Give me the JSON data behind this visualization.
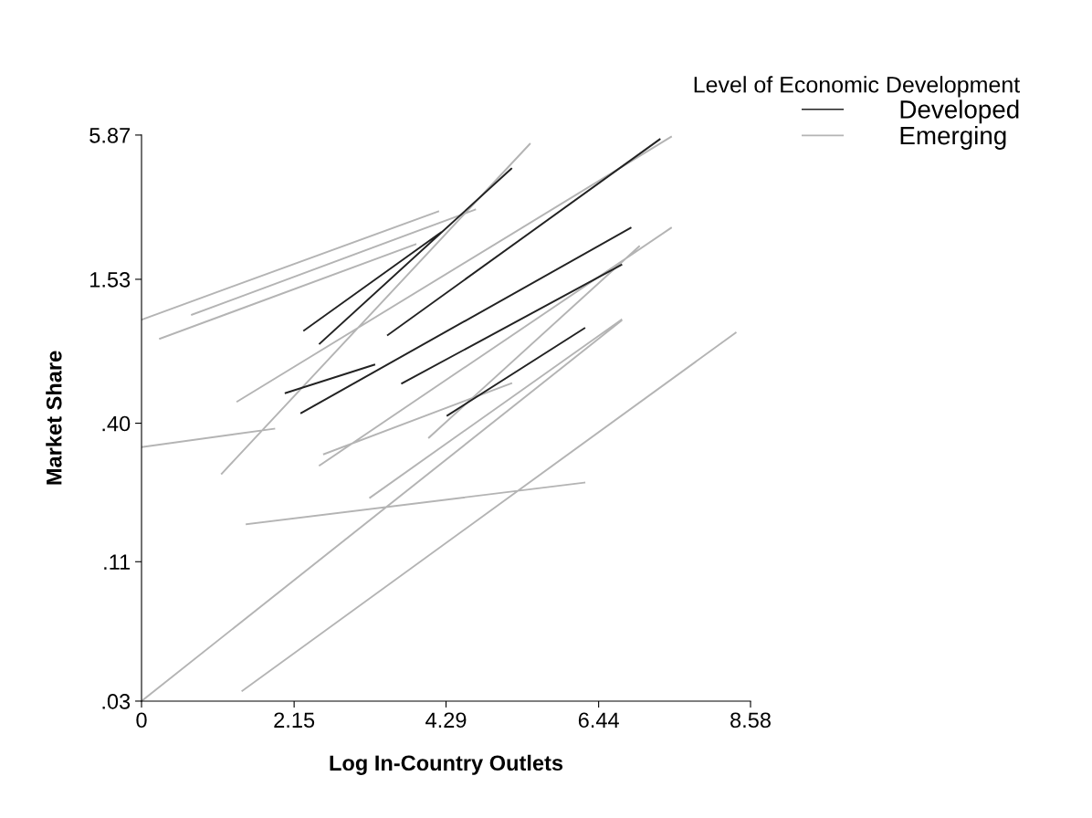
{
  "chart_data": {
    "type": "line",
    "xlabel": "Log In-Country Outlets",
    "ylabel": "Market Share",
    "legend_title": "Level of Economic Development",
    "legend": "top right",
    "log": "y",
    "grid": false,
    "marker": "none",
    "line_style": "solid",
    "xlim": [
      0,
      8.58
    ],
    "xticks": [
      0,
      2.15,
      4.29,
      6.44,
      8.58
    ],
    "ylim": [
      0.03,
      5.87
    ],
    "yticks": [
      {
        "value": 0.03,
        "label": ".03"
      },
      {
        "value": 0.11,
        "label": ".11"
      },
      {
        "value": 0.4,
        "label": ".40"
      },
      {
        "value": 1.53,
        "label": "1.53"
      },
      {
        "value": 5.87,
        "label": "5.87"
      }
    ],
    "series": [
      {
        "name": "Emerging",
        "color": "#b4b4b4",
        "x": [
          0,
          4.18,
          null,
          0.26,
          3.86,
          null,
          0,
          1.87,
          null,
          1.13,
          5.47,
          null,
          0,
          6.76,
          null,
          1.42,
          8.37,
          null,
          1.48,
          6.24,
          null,
          3.22,
          6.76,
          null,
          2.51,
          7.46,
          null,
          1.35,
          7.46,
          null,
          0.71,
          4.7,
          null,
          2.57,
          5.21,
          null,
          4.05,
          7.01
        ],
        "values": [
          1.05,
          2.88,
          null,
          0.88,
          2.12,
          null,
          0.32,
          0.38,
          null,
          0.25,
          5.4,
          null,
          0.03,
          1.04,
          null,
          0.033,
          0.93,
          null,
          0.156,
          0.23,
          null,
          0.2,
          1.05,
          null,
          0.27,
          2.47,
          null,
          0.49,
          5.77,
          null,
          1.1,
          2.93,
          null,
          0.3,
          0.58,
          null,
          0.35,
          2.08
        ]
      },
      {
        "name": "Developed",
        "color": "#222222",
        "x": [
          2.29,
          4.22,
          null,
          3.47,
          7.3,
          null,
          2.03,
          3.28,
          null,
          2.51,
          5.21,
          null,
          2.25,
          6.89,
          null,
          3.67,
          6.76,
          null,
          4.31,
          6.24
        ],
        "values": [
          0.95,
          2.37,
          null,
          0.91,
          5.64,
          null,
          0.53,
          0.69,
          null,
          0.84,
          4.29,
          null,
          0.44,
          2.47,
          null,
          0.58,
          1.75,
          null,
          0.43,
          0.97
        ]
      }
    ]
  }
}
